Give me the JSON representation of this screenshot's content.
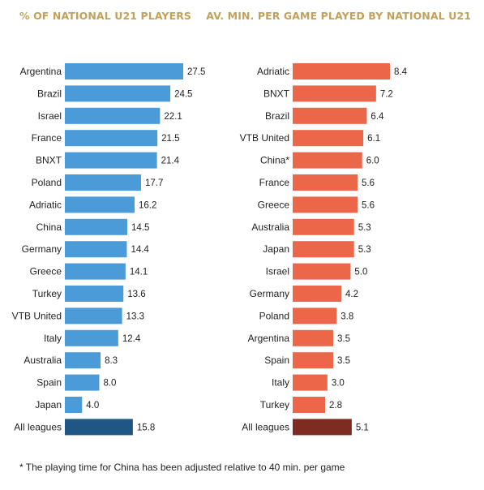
{
  "chart_data": [
    {
      "type": "bar",
      "orientation": "horizontal",
      "title": "% OF NATIONAL U21 PLAYERS",
      "categories": [
        "Argentina",
        "Brazil",
        "Israel",
        "France",
        "BNXT",
        "Poland",
        "Adriatic",
        "China",
        "Germany",
        "Greece",
        "Turkey",
        "VTB United",
        "Italy",
        "Australia",
        "Spain",
        "Japan",
        "All leagues"
      ],
      "values": [
        27.5,
        24.5,
        22.1,
        21.5,
        21.4,
        17.7,
        16.2,
        14.5,
        14.4,
        14.1,
        13.6,
        13.3,
        12.4,
        8.3,
        8.0,
        4.0,
        15.8
      ],
      "value_labels": [
        "27.5",
        "24.5",
        "22.1",
        "21.5",
        "21.4",
        "17.7",
        "16.2",
        "14.5",
        "14.4",
        "14.1",
        "13.6",
        "13.3",
        "12.4",
        "8.3",
        "8.0",
        "4.0",
        "15.8"
      ],
      "bar_color": "#4a9bd8",
      "highlight_color": "#1f5784",
      "xlim": [
        0,
        27.5
      ]
    },
    {
      "type": "bar",
      "orientation": "horizontal",
      "title": "AV. MIN. PER GAME PLAYED BY NATIONAL U21",
      "categories": [
        "Adriatic",
        "BNXT",
        "Brazil",
        "VTB United",
        "China*",
        "France",
        "Greece",
        "Australia",
        "Japan",
        "Israel",
        "Germany",
        "Poland",
        "Argentina",
        "Spain",
        "Italy",
        "Turkey",
        "All leagues"
      ],
      "values": [
        8.4,
        7.2,
        6.4,
        6.1,
        6.0,
        5.6,
        5.6,
        5.3,
        5.3,
        5.0,
        4.2,
        3.8,
        3.5,
        3.5,
        3.0,
        2.8,
        5.1
      ],
      "value_labels": [
        "8.4",
        "7.2",
        "6.4",
        "6.1",
        "6.0",
        "5.6",
        "5.6",
        "5.3",
        "5.3",
        "5.0",
        "4.2",
        "3.8",
        "3.5",
        "3.5",
        "3.0",
        "2.8",
        "5.1"
      ],
      "bar_color": "#ec674a",
      "highlight_color": "#7e2b22",
      "xlim": [
        0,
        8.4
      ]
    }
  ],
  "footnote": "* The playing time for China has been adjusted relative to 40 min. per game"
}
